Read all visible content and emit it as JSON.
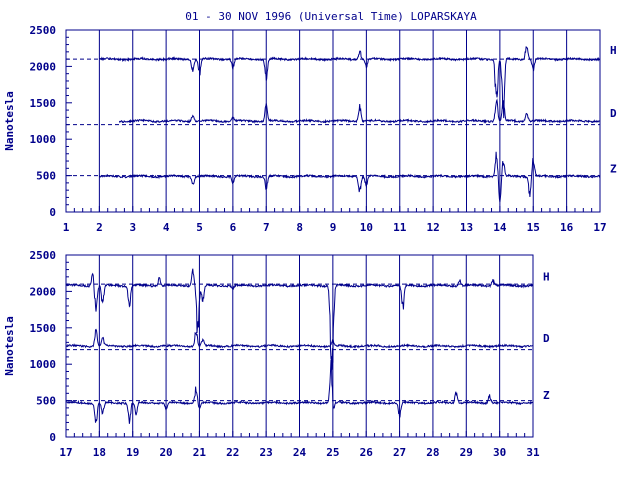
{
  "title": "01 - 30 NOV 1996 (Universal Time) LOPARSKAYA",
  "colors": {
    "ink": "#00008b",
    "background": "#ffffff"
  },
  "chart_data": [
    {
      "type": "line",
      "ylabel": "Nanotesla",
      "xlim": [
        1,
        17
      ],
      "ylim": [
        0,
        2500
      ],
      "x_ticks": [
        "1",
        "2",
        "3",
        "4",
        "5",
        "6",
        "7",
        "8",
        "9",
        "10",
        "11",
        "12",
        "13",
        "14",
        "15",
        "16",
        "17"
      ],
      "y_ticks": [
        "0",
        "500",
        "1000",
        "1500",
        "2000",
        "2500"
      ],
      "grid": "vertical lines at each day",
      "baselines": [
        2100,
        1200,
        500
      ],
      "series": [
        {
          "name": "H",
          "start": 2,
          "end": 17,
          "base": 2100,
          "features": [
            [
              4.8,
              -150
            ],
            [
              5.0,
              -200
            ],
            [
              6.0,
              -120
            ],
            [
              7.0,
              -250
            ],
            [
              9.8,
              120
            ],
            [
              10.0,
              -100
            ],
            [
              13.9,
              -600
            ],
            [
              14.1,
              -750
            ],
            [
              14.8,
              200
            ],
            [
              15.0,
              -150
            ]
          ]
        },
        {
          "name": "D",
          "start": 2.6,
          "end": 17,
          "base": 1250,
          "features": [
            [
              4.8,
              80
            ],
            [
              6.0,
              60
            ],
            [
              7.0,
              200
            ],
            [
              9.8,
              200
            ],
            [
              13.9,
              300
            ],
            [
              14.1,
              250
            ],
            [
              14.8,
              120
            ]
          ]
        },
        {
          "name": "Z",
          "start": 2,
          "end": 17,
          "base": 490,
          "features": [
            [
              4.8,
              -100
            ],
            [
              6.0,
              -80
            ],
            [
              7.0,
              -150
            ],
            [
              9.8,
              -200
            ],
            [
              10.0,
              -120
            ],
            [
              13.9,
              300
            ],
            [
              14.0,
              -380
            ],
            [
              14.1,
              200
            ],
            [
              14.9,
              -250
            ],
            [
              15.0,
              250
            ]
          ]
        }
      ]
    },
    {
      "type": "line",
      "ylabel": "Nanotesla",
      "xlim": [
        17,
        31
      ],
      "ylim": [
        0,
        2500
      ],
      "x_ticks": [
        "17",
        "18",
        "19",
        "20",
        "21",
        "22",
        "23",
        "24",
        "25",
        "26",
        "27",
        "28",
        "29",
        "30",
        "31"
      ],
      "y_ticks": [
        "0",
        "500",
        "1000",
        "1500",
        "2000",
        "2500"
      ],
      "grid": "vertical lines at each day",
      "baselines": [
        2100,
        1200,
        500
      ],
      "series": [
        {
          "name": "H",
          "start": 17,
          "end": 31,
          "base": 2080,
          "features": [
            [
              17.8,
              150
            ],
            [
              17.9,
              -350
            ],
            [
              18.1,
              -250
            ],
            [
              18.9,
              -250
            ],
            [
              19.8,
              100
            ],
            [
              20.8,
              200
            ],
            [
              20.95,
              -650
            ],
            [
              21.1,
              -200
            ],
            [
              22.0,
              -50
            ],
            [
              24.95,
              -800
            ],
            [
              25.0,
              -600
            ],
            [
              27.1,
              -300
            ],
            [
              28.8,
              80
            ],
            [
              29.8,
              80
            ]
          ]
        },
        {
          "name": "D",
          "start": 17,
          "end": 31,
          "base": 1250,
          "features": [
            [
              17.9,
              200
            ],
            [
              18.1,
              100
            ],
            [
              20.9,
              200
            ],
            [
              21.1,
              80
            ],
            [
              25.0,
              60
            ]
          ]
        },
        {
          "name": "Z",
          "start": 17,
          "end": 31,
          "base": 470,
          "features": [
            [
              17.9,
              -280
            ],
            [
              18.1,
              -150
            ],
            [
              18.9,
              -250
            ],
            [
              19.1,
              -150
            ],
            [
              20.0,
              -80
            ],
            [
              20.9,
              200
            ],
            [
              21.0,
              -100
            ],
            [
              24.95,
              550
            ],
            [
              25.0,
              -150
            ],
            [
              27.0,
              -180
            ],
            [
              28.7,
              150
            ],
            [
              29.7,
              100
            ]
          ]
        }
      ]
    }
  ]
}
